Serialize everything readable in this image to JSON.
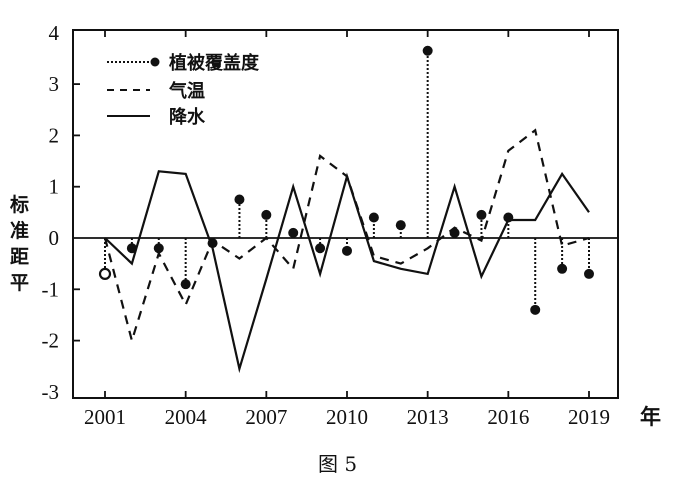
{
  "chart_data": {
    "type": "line",
    "title": "",
    "caption": "图 5",
    "xlabel": "年",
    "ylabel": "标准距平",
    "ylabel_chars": [
      "标",
      "准",
      "距",
      "平"
    ],
    "ylim": [
      -3,
      4
    ],
    "xlim": [
      2001,
      2019
    ],
    "grid": false,
    "zero_line": true,
    "legend_position": "upper-left",
    "x_ticks": [
      2001,
      2004,
      2007,
      2010,
      2013,
      2016,
      2019
    ],
    "x_tick_labels": [
      "2001",
      "2004",
      "2007",
      "2010",
      "2013",
      "2016",
      "2019"
    ],
    "y_ticks": [
      4,
      3,
      2,
      1,
      0,
      -1,
      -2,
      -3
    ],
    "y_tick_labels": [
      "4",
      "3",
      "2",
      "1",
      "0",
      "-1",
      "-2",
      "-3"
    ],
    "x": [
      2001,
      2002,
      2003,
      2004,
      2005,
      2006,
      2007,
      2008,
      2009,
      2010,
      2011,
      2012,
      2013,
      2014,
      2015,
      2016,
      2017,
      2018,
      2019
    ],
    "series": [
      {
        "name": "植被覆盖度",
        "style": "dotted-stem-with-dot",
        "values": [
          -0.7,
          -0.2,
          -0.2,
          -0.9,
          -0.1,
          0.75,
          0.45,
          0.1,
          -0.2,
          -0.25,
          0.4,
          0.25,
          3.65,
          0.1,
          0.45,
          0.4,
          -1.4,
          -0.6,
          -0.7
        ]
      },
      {
        "name": "气温",
        "style": "dashed",
        "values": [
          0,
          -2.0,
          -0.3,
          -1.3,
          -0.05,
          -0.4,
          0,
          -0.6,
          1.6,
          1.2,
          -0.35,
          -0.5,
          -0.2,
          0.2,
          -0.05,
          1.7,
          2.1,
          -0.15,
          0
        ]
      },
      {
        "name": "降水",
        "style": "solid",
        "values": [
          0,
          -0.5,
          1.3,
          1.25,
          -0.2,
          -2.55,
          -0.8,
          1.0,
          -0.7,
          1.2,
          -0.45,
          -0.6,
          -0.7,
          1.0,
          -0.75,
          0.35,
          0.35,
          1.25,
          0.5
        ]
      }
    ]
  },
  "legend": {
    "items": [
      {
        "label": "植被覆盖度",
        "icon": "dotted-line-with-dot-icon"
      },
      {
        "label": "气温",
        "icon": "dashed-line-icon"
      },
      {
        "label": "降水",
        "icon": "solid-line-icon"
      }
    ]
  },
  "colors": {
    "ink": "#111111",
    "background": "#ffffff"
  }
}
